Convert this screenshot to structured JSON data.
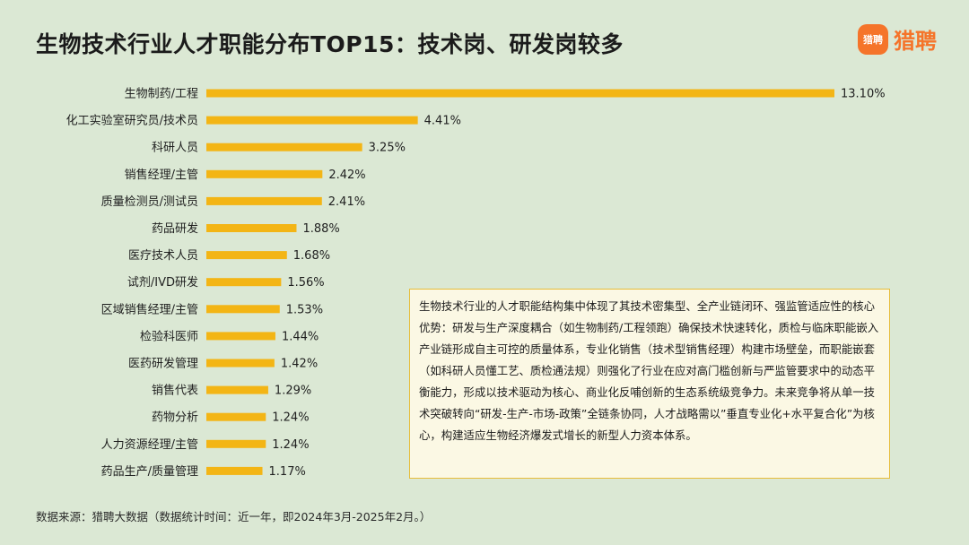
{
  "header": {
    "title": "生物技术行业人才职能分布TOP15：技术岗、研发岗较多"
  },
  "logo": {
    "badge_text": "猎聘",
    "text": "猎聘"
  },
  "colors": {
    "background": "#dbe8d4",
    "bar": "#f3b515",
    "brand": "#f5742a",
    "note_border": "#e6bd3a",
    "note_bg": "#fbf8e4"
  },
  "chart_data": {
    "type": "bar",
    "orientation": "horizontal",
    "title": "生物技术行业人才职能分布TOP15：技术岗、研发岗较多",
    "categories": [
      "生物制药/工程",
      "化工实验室研究员/技术员",
      "科研人员",
      "销售经理/主管",
      "质量检测员/测试员",
      "药品研发",
      "医疗技术人员",
      "试剂/IVD研发",
      "区域销售经理/主管",
      "检验科医师",
      "医药研发管理",
      "销售代表",
      "药物分析",
      "人力资源经理/主管",
      "药品生产/质量管理"
    ],
    "values": [
      13.1,
      4.41,
      3.25,
      2.42,
      2.41,
      1.88,
      1.68,
      1.56,
      1.53,
      1.44,
      1.42,
      1.29,
      1.24,
      1.24,
      1.17
    ],
    "value_labels": [
      "13.10%",
      "4.41%",
      "3.25%",
      "2.42%",
      "2.41%",
      "1.88%",
      "1.68%",
      "1.56%",
      "1.53%",
      "1.44%",
      "1.42%",
      "1.29%",
      "1.24%",
      "1.24%",
      "1.17%"
    ],
    "unit": "%",
    "xlabel": "",
    "ylabel": "",
    "xlim": [
      0,
      13.1
    ],
    "grid": false,
    "legend": "none"
  },
  "note": {
    "text": "生物技术行业的人才职能结构集中体现了其技术密集型、全产业链闭环、强监管适应性的核心优势：研发与生产深度耦合（如生物制药/工程领跑）确保技术快速转化，质检与临床职能嵌入产业链形成自主可控的质量体系，专业化销售（技术型销售经理）构建市场壁垒，而职能嵌套（如科研人员懂工艺、质检通法规）则强化了行业在应对高门槛创新与严监管要求中的动态平衡能力，形成以技术驱动为核心、商业化反哺创新的生态系统级竞争力。未来竞争将从单一技术突破转向“研发-生产-市场-政策”全链条协同，人才战略需以”垂直专业化+水平复合化”为核心，构建适应生物经济爆发式增长的新型人力资本体系。"
  },
  "footer": {
    "source": "数据来源：猎聘大数据（数据统计时间：近一年，即2024年3月-2025年2月。）"
  }
}
